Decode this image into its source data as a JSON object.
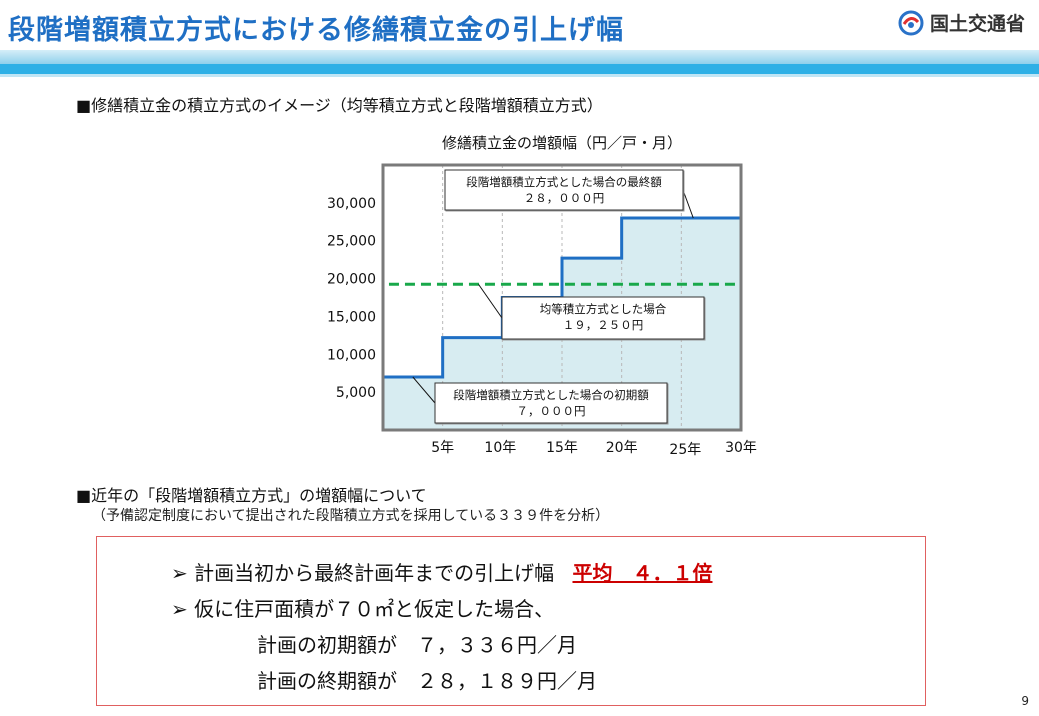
{
  "header": {
    "title": "段階増額積立方式における修繕積立金の引上げ幅",
    "logo_text": "国土交通省"
  },
  "section1": {
    "heading": "■修繕積立金の積立方式のイメージ（均等積立方式と段階増額積立方式）"
  },
  "chart_data": {
    "type": "line",
    "title": "修繕積立金の増額幅（円／戸・月）",
    "xlabel": "",
    "ylabel": "",
    "x_tick_labels": [
      "5年",
      "10年",
      "15年",
      "20年",
      "25年",
      "30年"
    ],
    "y_tick_labels": [
      "5,000",
      "10,000",
      "15,000",
      "20,000",
      "25,000",
      "30,000"
    ],
    "xlim": [
      0,
      30
    ],
    "ylim": [
      0,
      35000
    ],
    "grid": "vertical dashed",
    "series": [
      {
        "kind": "step",
        "x": [
          0,
          5,
          5,
          10,
          10,
          15,
          15,
          20,
          20,
          30
        ],
        "y": [
          7000,
          7000,
          12200,
          12200,
          17500,
          17500,
          22700,
          22700,
          28000,
          28000
        ],
        "color": "#1f6fc4",
        "fill": "#d7ecf1"
      },
      {
        "kind": "dashed",
        "x": [
          0.5,
          30
        ],
        "y": [
          19250,
          19250
        ],
        "color": "#19a84a"
      }
    ],
    "annotations": [
      {
        "line1": "段階増額積立方式とした場合の最終額",
        "line2": "２８，０００円",
        "point": [
          26,
          28000
        ]
      },
      {
        "line1": "均等積立方式とした場合",
        "line2": "１９，２５０円",
        "point": [
          8,
          19250
        ]
      },
      {
        "line1": "段階増額積立方式とした場合の初期額",
        "line2": "７，０００円",
        "point": [
          2.5,
          7000
        ]
      }
    ]
  },
  "section2": {
    "heading": "■近年の「段階増額積立方式」の増額幅について",
    "subheading": "（予備認定制度において提出された段階積立方式を採用している３３９件を分析）"
  },
  "summary": {
    "bullet1_text": "計画当初から最終計画年までの引上げ幅",
    "bullet1_highlight": "平均　４．１倍",
    "bullet2_text": "仮に住戸面積が７０㎡と仮定した場合、",
    "line3": "計画の初期額が　７，３３６円／月",
    "line4": "計画の終期額が　２８，１８９円／月",
    "bullet_marker": "➢"
  },
  "page_number": "9"
}
